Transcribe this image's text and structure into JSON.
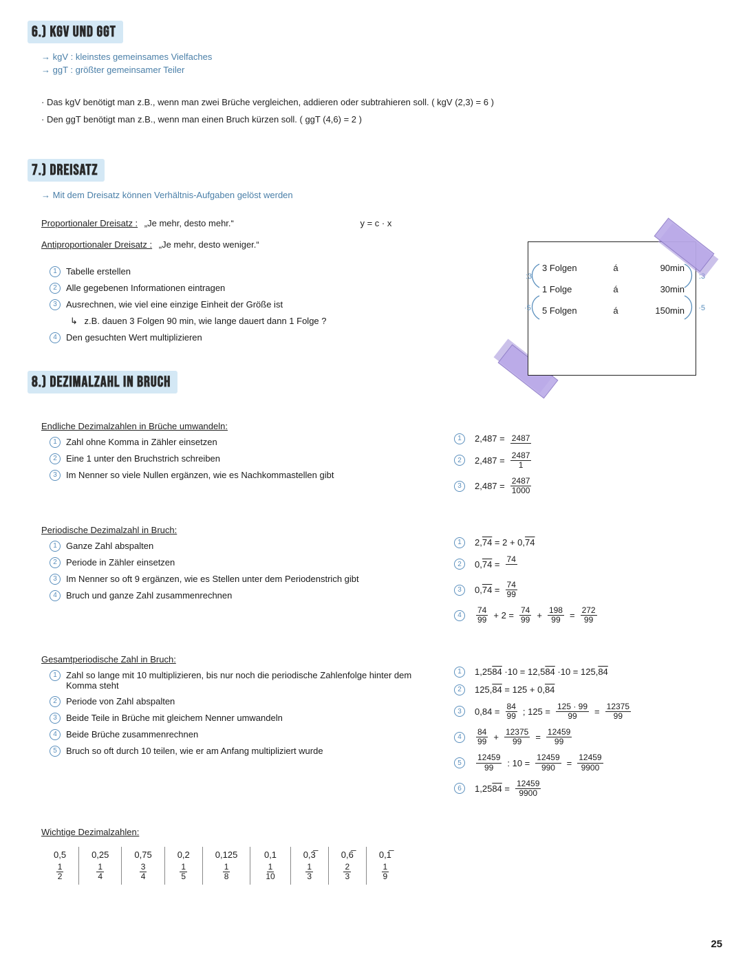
{
  "page_number": "25",
  "colors": {
    "heading_bg": "#d4e8f5",
    "note_text": "#4a7fa8",
    "circle_border": "#5a8fbd",
    "tape": "#b9a9e8",
    "ink": "#1a1a1a"
  },
  "s6": {
    "title": "6.) kgV und ggT",
    "note1_prefix": "→",
    "note1": "kgV : kleinstes gemeinsames Vielfaches",
    "note2_prefix": "→",
    "note2": "ggT : größter gemeinsamer Teiler",
    "line1": "· Das kgV benötigt man z.B., wenn man zwei Brüche vergleichen, addieren oder subtrahieren soll.   ( kgV (2,3) = 6 )",
    "line2": "· Den ggT benötigt man  z.B., wenn man einen Bruch kürzen soll.    ( ggT (4,6) = 2 )"
  },
  "s7": {
    "title": "7.) Dreisatz",
    "note": "→ Mit dem Dreisatz können Verhältnis-Aufgaben gelöst werden",
    "prop_label": "Proportionaler Dreisatz :",
    "prop_quote": "„Je mehr, desto mehr.“",
    "prop_formula": "y = c · x",
    "anti_label": "Antiproportionaler Dreisatz :",
    "anti_quote": "„Je mehr, desto weniger.“",
    "steps": [
      "Tabelle erstellen",
      "Alle gegebenen Informationen eintragen",
      "Ausrechnen, wie viel eine einzige Einheit der Größe ist",
      "Den gesuchten Wert multiplizieren"
    ],
    "step_sub_prefix": "↳",
    "step_sub": "z.B. dauen 3 Folgen 90 min, wie lange dauert dann 1 Folge ?",
    "card": {
      "rows": [
        [
          "3 Folgen",
          "á",
          "90min"
        ],
        [
          "1 Folge",
          "á",
          "30min"
        ],
        [
          "5 Folgen",
          "á",
          "150min"
        ]
      ],
      "left_ops": [
        ":3",
        "·5"
      ],
      "right_ops": [
        ":3",
        "·5"
      ]
    }
  },
  "s8": {
    "title": "8.) Dezimalzahl in Bruch",
    "part1": {
      "heading": "Endliche Dezimalzahlen in Brüche umwandeln:",
      "steps": [
        "Zahl ohne Komma in Zähler einsetzen",
        "Eine 1 unter den Bruchstrich schreiben",
        "Im Nenner so viele Nullen ergänzen, wie es Nachkommastellen gibt"
      ],
      "ex": [
        {
          "lhs": "2,487  =",
          "num": "2487",
          "den": ""
        },
        {
          "lhs": "2,487  =",
          "num": "2487",
          "den": "1"
        },
        {
          "lhs": "2,487  =",
          "num": "2487",
          "den": "1000"
        }
      ]
    },
    "part2": {
      "heading": "Periodische Dezimalzahl in Bruch:",
      "steps": [
        "Ganze Zahl abspalten",
        "Periode in Zähler einsetzen",
        "Im Nenner so oft 9 ergänzen, wie es Stellen unter dem Periodenstrich gibt",
        "Bruch und ganze Zahl zusammenrechnen"
      ],
      "ex1_lhs": "2,74  =  2 + 0,74",
      "ex2_lhs": "0,74  =",
      "ex2_num": "74",
      "ex2_den": "",
      "ex3_lhs": "0,74  =",
      "ex3_num": "74",
      "ex3_den": "99",
      "ex4": {
        "t1": "74",
        "b1": "99",
        "plus": "+ 2 =",
        "t2": "74",
        "b2": "99",
        "plus2": "+",
        "t3": "198",
        "b3": "99",
        "eq": "=",
        "t4": "272",
        "b4": "99"
      }
    },
    "part3": {
      "heading": "Gesamtperiodische Zahl in Bruch:",
      "steps": [
        "Zahl so lange mit 10 multiplizieren, bis nur noch die periodische Zahlenfolge hinter dem Komma steht",
        "Periode von Zahl abspalten",
        "Beide Teile in Brüche mit gleichem Nenner umwandeln",
        "Beide Brüche zusammenrechnen",
        "Bruch so oft durch 10 teilen, wie er am Anfang multipliziert wurde"
      ],
      "ex1": "1,2584 · 10 = 12,584 · 10 = 125,84",
      "ex2": "125,84 = 125 + 0,84",
      "ex3": {
        "a_num": "84",
        "a_den": "99",
        "mid": ";  125 =",
        "b_num": "125 · 99",
        "b_den": "99",
        "eq": "=",
        "c_num": "12375",
        "c_den": "99",
        "pre": "0,84 ="
      },
      "ex4": {
        "a_num": "84",
        "a_den": "99",
        "plus": "+",
        "b_num": "12375",
        "b_den": "99",
        "eq": "=",
        "c_num": "12459",
        "c_den": "99"
      },
      "ex5": {
        "a_num": "12459",
        "a_den": "99",
        "op": ": 10 =",
        "b_num": "12459",
        "b_den": "990",
        "eq": "=",
        "c_num": "12459",
        "c_den": "9900"
      },
      "ex6": {
        "lhs": "1,2584 =",
        "num": "12459",
        "den": "9900"
      }
    },
    "part4": {
      "heading": "Wichtige Dezimalzahlen:",
      "cols": [
        {
          "top": "0,5",
          "num": "1",
          "den": "2"
        },
        {
          "top": "0,25",
          "num": "1",
          "den": "4"
        },
        {
          "top": "0,75",
          "num": "3",
          "den": "4"
        },
        {
          "top": "0,2",
          "num": "1",
          "den": "5"
        },
        {
          "top": "0,125",
          "num": "1",
          "den": "8"
        },
        {
          "top": "0,1",
          "num": "1",
          "den": "10"
        },
        {
          "top": "0,3̅",
          "num": "1",
          "den": "3"
        },
        {
          "top": "0,6̅",
          "num": "2",
          "den": "3"
        },
        {
          "top": "0,1̅",
          "num": "1",
          "den": "9"
        }
      ]
    }
  }
}
